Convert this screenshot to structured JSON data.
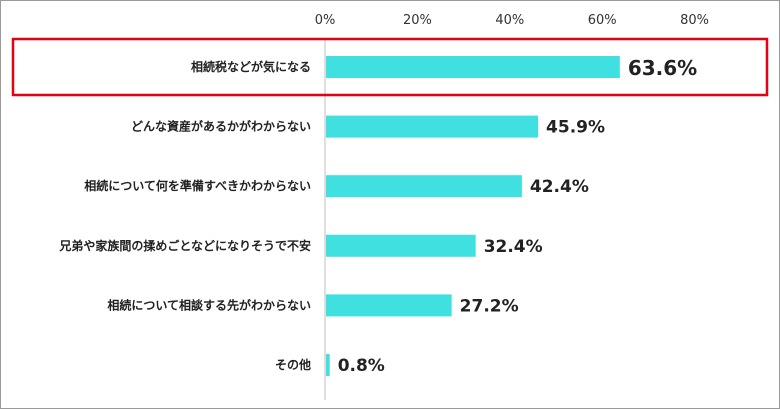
{
  "chart_data": {
    "type": "bar",
    "orientation": "horizontal",
    "categories": [
      "相続税などが気になる",
      "どんな資産があるかがわからない",
      "相続について何を準備すべきかわからない",
      "兄弟や家族間の揉めごとなどになりそうで不安",
      "相続について相談する先がわからない",
      "その他"
    ],
    "values": [
      63.6,
      45.9,
      42.4,
      32.4,
      27.2,
      0.8
    ],
    "value_labels": [
      "63.6%",
      "45.9%",
      "42.4%",
      "32.4%",
      "27.2%",
      "0.8%"
    ],
    "xlim": [
      0,
      80
    ],
    "xticks": [
      0,
      20,
      40,
      60,
      80
    ],
    "xtick_labels": [
      "0%",
      "20%",
      "40%",
      "60%",
      "80%"
    ],
    "axis_position": "top",
    "grid": false,
    "highlighted_category_index": 0,
    "title": "",
    "xlabel": "",
    "ylabel": ""
  },
  "colors": {
    "bar": "#40E0E0",
    "highlight_border": "#E60012",
    "axis": "#BFBFBF",
    "frame": "#9A9A9A"
  }
}
